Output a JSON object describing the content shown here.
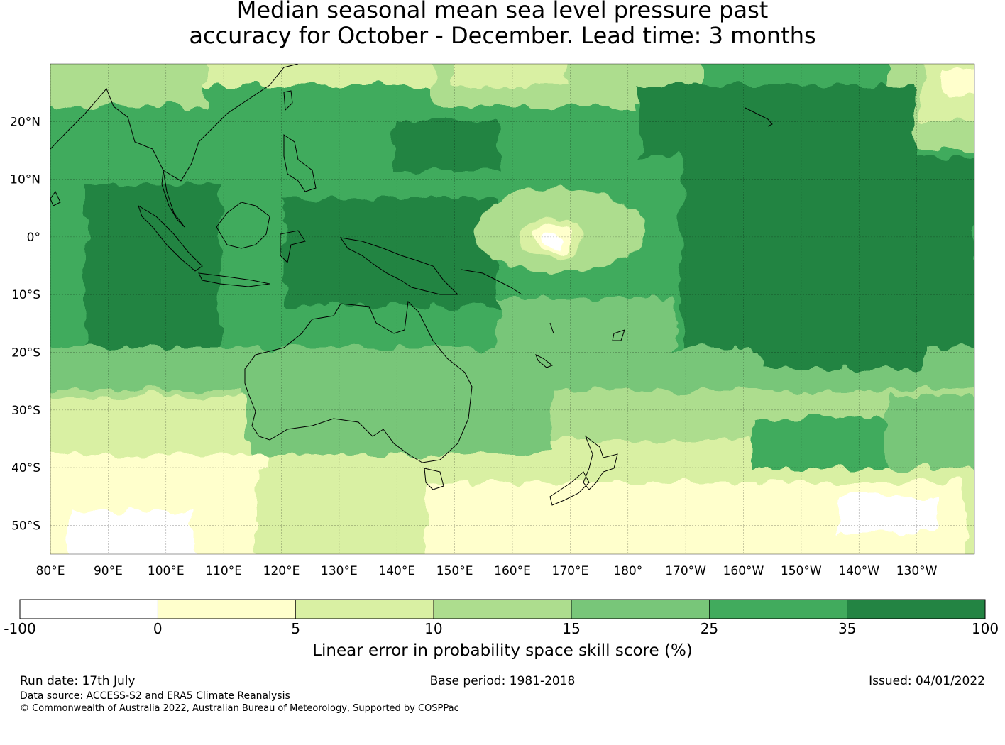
{
  "title": {
    "line1": "Median seasonal mean sea level pressure past",
    "line2": "accuracy for October - December. Lead time: 3 months"
  },
  "map": {
    "lon_range": [
      80,
      240
    ],
    "lat_range": [
      -55,
      30
    ],
    "lon_ticks": [
      {
        "lon": 80,
        "label": "80°E"
      },
      {
        "lon": 90,
        "label": "90°E"
      },
      {
        "lon": 100,
        "label": "100°E"
      },
      {
        "lon": 110,
        "label": "110°E"
      },
      {
        "lon": 120,
        "label": "120°E"
      },
      {
        "lon": 130,
        "label": "130°E"
      },
      {
        "lon": 140,
        "label": "140°E"
      },
      {
        "lon": 150,
        "label": "150°E"
      },
      {
        "lon": 160,
        "label": "160°E"
      },
      {
        "lon": 170,
        "label": "170°E"
      },
      {
        "lon": 180,
        "label": "180°"
      },
      {
        "lon": 190,
        "label": "170°W"
      },
      {
        "lon": 200,
        "label": "160°W"
      },
      {
        "lon": 210,
        "label": "150°W"
      },
      {
        "lon": 220,
        "label": "140°W"
      },
      {
        "lon": 230,
        "label": "130°W"
      }
    ],
    "lat_ticks": [
      {
        "lat": 20,
        "label": "20°N"
      },
      {
        "lat": 10,
        "label": "10°N"
      },
      {
        "lat": 0,
        "label": "0°"
      },
      {
        "lat": -10,
        "label": "10°S"
      },
      {
        "lat": -20,
        "label": "20°S"
      },
      {
        "lat": -30,
        "label": "30°S"
      },
      {
        "lat": -40,
        "label": "40°S"
      },
      {
        "lat": -50,
        "label": "50°S"
      }
    ]
  },
  "colorbar": {
    "ticks": [
      "-100",
      "0",
      "5",
      "10",
      "15",
      "25",
      "35",
      "100"
    ],
    "colors": [
      "#ffffff",
      "#ffffcc",
      "#d9f0a3",
      "#addd8e",
      "#78c679",
      "#41ab5d",
      "#238443"
    ],
    "label": "Linear error in probability space skill score (%)"
  },
  "footer": {
    "run_date": "Run date: 17th July",
    "base_period": "Base period: 1981-2018",
    "issued": "Issued: 04/01/2022",
    "data_source": "Data source: ACCESS-S2 and ERA5 Climate Reanalysis",
    "copyright": "© Commonwealth of Australia 2022, Australian Bureau of Meteorology, Supported by COSPPac"
  }
}
